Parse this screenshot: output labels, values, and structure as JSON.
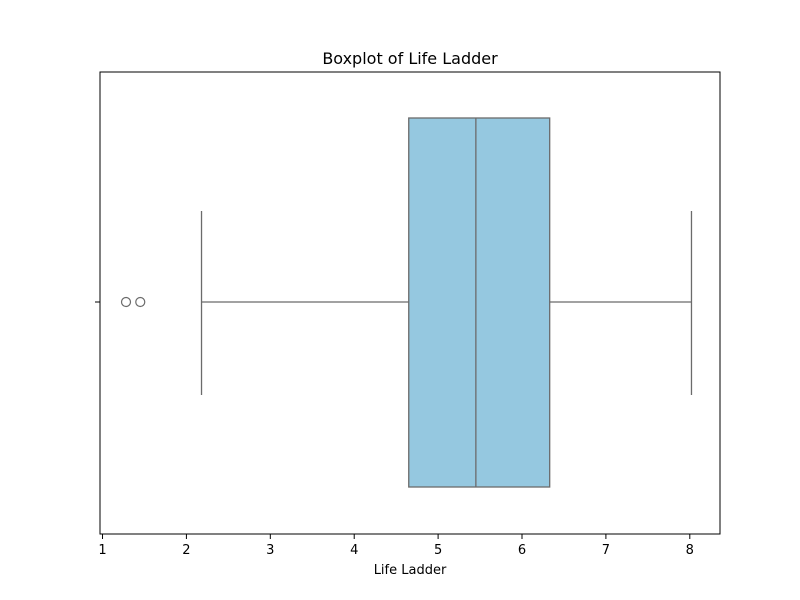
{
  "chart_data": {
    "type": "box",
    "title": "Boxplot of Life Ladder",
    "xlabel": "Life Ladder",
    "ylabel": "",
    "orientation": "horizontal",
    "xlim": [
      0.97,
      8.36
    ],
    "xticks": [
      1,
      2,
      3,
      4,
      5,
      6,
      7,
      8
    ],
    "grid": false,
    "legend": "none",
    "colors": {
      "box_fill": "#95c8e0",
      "line": "#6b6b6b",
      "frame": "#000000"
    },
    "box": {
      "whisker_low": 2.18,
      "q1": 4.65,
      "median": 5.45,
      "q3": 6.33,
      "whisker_high": 8.02,
      "outliers": [
        1.28,
        1.45
      ]
    }
  }
}
